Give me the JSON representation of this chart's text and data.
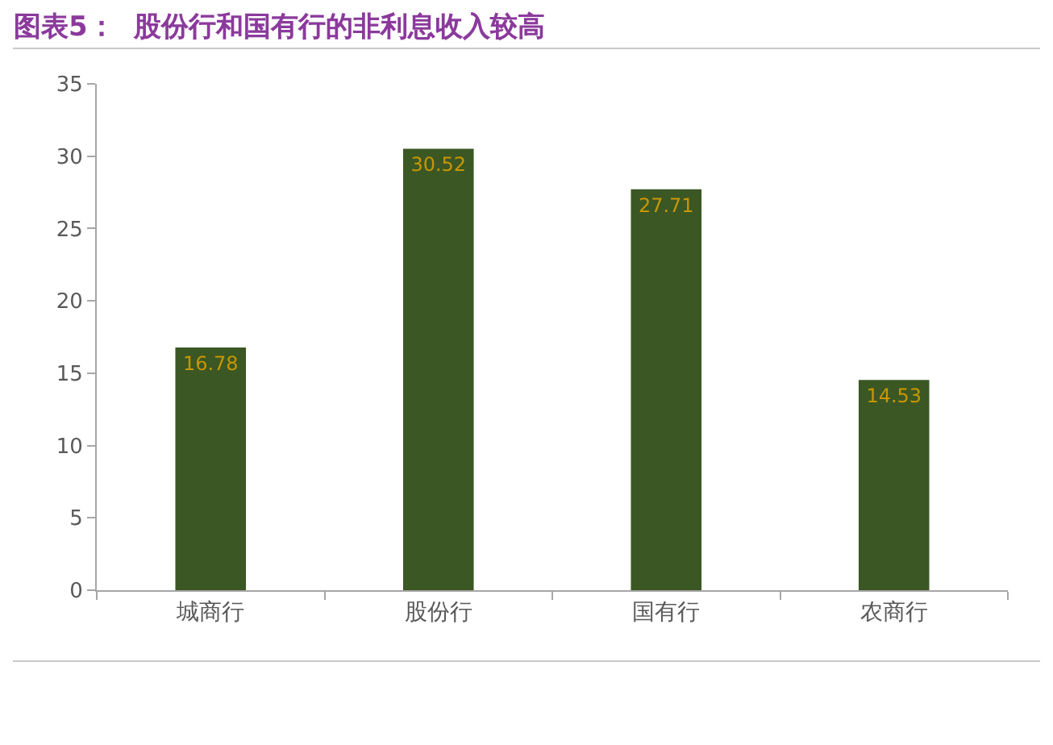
{
  "chart_data": {
    "type": "bar",
    "title": "图表5：  股份行和国有行的非利息收入较高",
    "categories": [
      "城商行",
      "股份行",
      "国有行",
      "农商行"
    ],
    "values": [
      16.78,
      30.52,
      27.71,
      14.53
    ],
    "color": "#3b5724",
    "ylim": [
      0,
      35
    ],
    "yticks": [
      0,
      5,
      10,
      15,
      20,
      25,
      30,
      35
    ],
    "data_labels": true
  }
}
